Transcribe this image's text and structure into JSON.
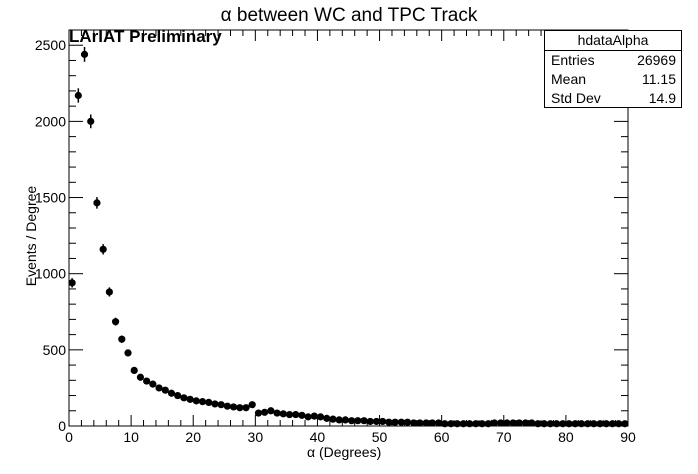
{
  "title": "α between WC and TPC Track",
  "subtitle": "LArIAT Preliminary",
  "stats": {
    "name": "hdataAlpha",
    "rows": [
      {
        "label": "Entries",
        "value": "26969"
      },
      {
        "label": "Mean",
        "value": "11.15"
      },
      {
        "label": "Std Dev",
        "value": "14.9"
      }
    ]
  },
  "chart_data": {
    "type": "scatter",
    "style": "histogram points with vertical error bars",
    "xlabel": "α (Degrees)",
    "ylabel": "Events / Degree",
    "xlim": [
      0,
      90
    ],
    "ylim": [
      0,
      2600
    ],
    "xticks": [
      0,
      10,
      20,
      30,
      40,
      50,
      60,
      70,
      80,
      90
    ],
    "yticks": [
      0,
      500,
      1000,
      1500,
      2000,
      2500
    ],
    "grid": false,
    "points": {
      "x": [
        0.5,
        1.5,
        2.5,
        3.5,
        4.5,
        5.5,
        6.5,
        7.5,
        8.5,
        9.5,
        10.5,
        11.5,
        12.5,
        13.5,
        14.5,
        15.5,
        16.5,
        17.5,
        18.5,
        19.5,
        20.5,
        21.5,
        22.5,
        23.5,
        24.5,
        25.5,
        26.5,
        27.5,
        28.5,
        29.5,
        30.5,
        31.5,
        32.5,
        33.5,
        34.5,
        35.5,
        36.5,
        37.5,
        38.5,
        39.5,
        40.5,
        41.5,
        42.5,
        43.5,
        44.5,
        45.5,
        46.5,
        47.5,
        48.5,
        49.5,
        50.5,
        51.5,
        52.5,
        53.5,
        54.5,
        55.5,
        56.5,
        57.5,
        58.5,
        59.5,
        60.5,
        61.5,
        62.5,
        63.5,
        64.5,
        65.5,
        66.5,
        67.5,
        68.5,
        69.5,
        70.5,
        71.5,
        72.5,
        73.5,
        74.5,
        75.5,
        76.5,
        77.5,
        78.5,
        79.5,
        80.5,
        81.5,
        82.5,
        83.5,
        84.5,
        85.5,
        86.5,
        87.5,
        88.5,
        89.5
      ],
      "y": [
        940,
        2170,
        2440,
        2000,
        1465,
        1160,
        880,
        685,
        570,
        480,
        365,
        320,
        295,
        275,
        250,
        235,
        215,
        200,
        185,
        175,
        165,
        160,
        155,
        145,
        140,
        130,
        125,
        120,
        120,
        140,
        85,
        90,
        100,
        85,
        80,
        75,
        75,
        70,
        60,
        65,
        60,
        50,
        45,
        40,
        40,
        35,
        35,
        35,
        30,
        30,
        30,
        25,
        25,
        25,
        25,
        20,
        20,
        20,
        20,
        20,
        15,
        15,
        15,
        15,
        15,
        15,
        15,
        15,
        20,
        20,
        20,
        20,
        20,
        20,
        20,
        15,
        15,
        15,
        15,
        15,
        15,
        15,
        15,
        15,
        15,
        15,
        15,
        15,
        15,
        15
      ],
      "yerr": [
        31,
        47,
        49,
        45,
        38,
        34,
        30,
        26,
        24,
        22,
        19,
        18,
        17,
        17,
        16,
        15,
        15,
        14,
        14,
        13,
        13,
        13,
        12,
        12,
        12,
        11,
        11,
        11,
        11,
        12,
        9,
        9,
        10,
        9,
        9,
        9,
        9,
        8,
        8,
        8,
        8,
        7,
        7,
        6,
        6,
        6,
        6,
        6,
        5,
        5,
        5,
        5,
        5,
        5,
        5,
        4,
        4,
        4,
        4,
        4,
        4,
        4,
        4,
        4,
        4,
        4,
        4,
        4,
        4,
        4,
        4,
        4,
        4,
        4,
        4,
        4,
        4,
        4,
        4,
        4,
        4,
        4,
        4,
        4,
        4,
        4,
        4,
        4,
        4,
        4
      ]
    }
  }
}
